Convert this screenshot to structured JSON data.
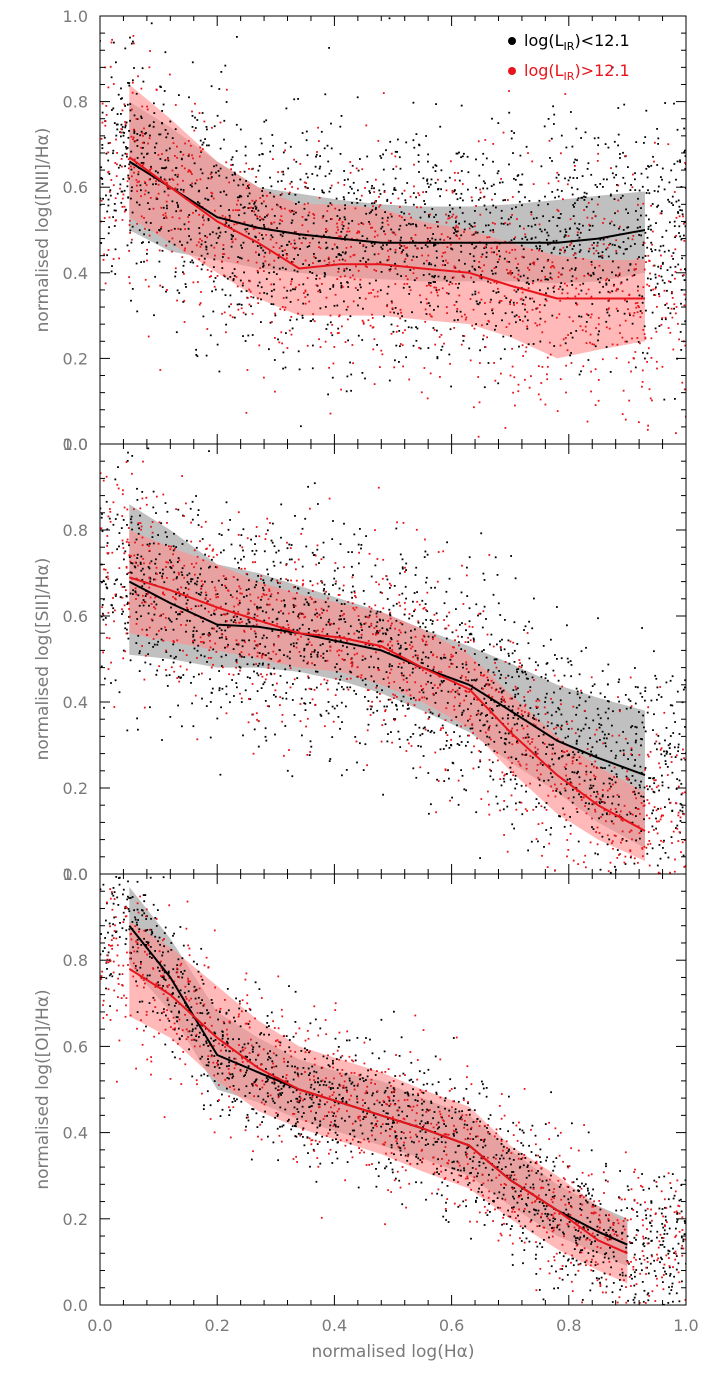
{
  "chart_data": [
    {
      "type": "scatter",
      "panel": "top",
      "xlabel": "",
      "ylabel": "normalised log([NII]/Hα)",
      "xlim": [
        0.0,
        1.0
      ],
      "ylim": [
        0.0,
        1.0
      ],
      "x_ticks": [
        "0.0",
        "0.2",
        "0.4",
        "0.6",
        "0.8",
        "1.0"
      ],
      "y_ticks": [
        "0.0",
        "0.2",
        "0.4",
        "0.6",
        "0.8",
        "1.0"
      ],
      "show_x_tick_labels": false,
      "legend": {
        "position": "top-right",
        "entries": [
          {
            "label": "log(L_IR)<12.1",
            "color": "#000000"
          },
          {
            "label": "log(L_IR)>12.1",
            "color": "#e8141b"
          }
        ]
      },
      "series": [
        {
          "color": "#000000",
          "band_color": "#9a9a9a",
          "median": {
            "x": [
              0.05,
              0.12,
              0.2,
              0.27,
              0.34,
              0.41,
              0.48,
              0.55,
              0.63,
              0.7,
              0.78,
              0.85,
              0.93
            ],
            "y": [
              0.66,
              0.6,
              0.53,
              0.505,
              0.49,
              0.48,
              0.47,
              0.47,
              0.47,
              0.47,
              0.47,
              0.48,
              0.5
            ]
          },
          "band": {
            "x": [
              0.05,
              0.12,
              0.2,
              0.27,
              0.34,
              0.41,
              0.48,
              0.55,
              0.63,
              0.7,
              0.78,
              0.85,
              0.93
            ],
            "lower": [
              0.5,
              0.45,
              0.43,
              0.41,
              0.4,
              0.39,
              0.385,
              0.38,
              0.38,
              0.38,
              0.375,
              0.38,
              0.4
            ],
            "upper": [
              0.8,
              0.74,
              0.66,
              0.6,
              0.585,
              0.57,
              0.56,
              0.555,
              0.555,
              0.56,
              0.57,
              0.58,
              0.59
            ]
          },
          "scatter": {
            "n": 1800,
            "x_range": [
              0.0,
              1.0
            ],
            "sigma": 0.14,
            "seed": 11
          }
        },
        {
          "color": "#e8141b",
          "band_color": "#ff8e8e",
          "median": {
            "x": [
              0.05,
              0.12,
              0.2,
              0.27,
              0.34,
              0.41,
              0.48,
              0.55,
              0.63,
              0.7,
              0.78,
              0.85,
              0.93
            ],
            "y": [
              0.67,
              0.6,
              0.52,
              0.47,
              0.41,
              0.42,
              0.42,
              0.41,
              0.4,
              0.37,
              0.34,
              0.34,
              0.34
            ]
          },
          "band": {
            "x": [
              0.05,
              0.12,
              0.2,
              0.27,
              0.34,
              0.41,
              0.48,
              0.55,
              0.63,
              0.7,
              0.78,
              0.85,
              0.93
            ],
            "lower": [
              0.53,
              0.47,
              0.4,
              0.34,
              0.3,
              0.3,
              0.3,
              0.29,
              0.28,
              0.25,
              0.2,
              0.22,
              0.24
            ],
            "upper": [
              0.84,
              0.76,
              0.66,
              0.6,
              0.56,
              0.56,
              0.55,
              0.52,
              0.5,
              0.47,
              0.44,
              0.43,
              0.43
            ]
          },
          "scatter": {
            "n": 1200,
            "x_range": [
              0.0,
              1.0
            ],
            "sigma": 0.14,
            "seed": 23
          }
        }
      ]
    },
    {
      "type": "scatter",
      "panel": "middle",
      "xlabel": "",
      "ylabel": "normalised log([SII]/Hα)",
      "xlim": [
        0.0,
        1.0
      ],
      "ylim": [
        0.0,
        1.0
      ],
      "x_ticks": [
        "0.0",
        "0.2",
        "0.4",
        "0.6",
        "0.8",
        "1.0"
      ],
      "y_ticks": [
        "0.0",
        "0.2",
        "0.4",
        "0.6",
        "0.8",
        "1.0"
      ],
      "show_x_tick_labels": false,
      "series": [
        {
          "color": "#000000",
          "band_color": "#9a9a9a",
          "median": {
            "x": [
              0.05,
              0.12,
              0.2,
              0.27,
              0.34,
              0.41,
              0.48,
              0.55,
              0.63,
              0.7,
              0.78,
              0.85,
              0.93
            ],
            "y": [
              0.68,
              0.63,
              0.58,
              0.575,
              0.56,
              0.54,
              0.52,
              0.48,
              0.44,
              0.38,
              0.31,
              0.27,
              0.23
            ]
          },
          "band": {
            "x": [
              0.05,
              0.12,
              0.2,
              0.27,
              0.34,
              0.41,
              0.48,
              0.55,
              0.63,
              0.7,
              0.78,
              0.85,
              0.93
            ],
            "lower": [
              0.51,
              0.5,
              0.48,
              0.48,
              0.47,
              0.45,
              0.42,
              0.38,
              0.33,
              0.26,
              0.19,
              0.12,
              0.06
            ],
            "upper": [
              0.86,
              0.8,
              0.72,
              0.7,
              0.67,
              0.64,
              0.61,
              0.57,
              0.53,
              0.49,
              0.44,
              0.41,
              0.38
            ]
          },
          "scatter": {
            "n": 1800,
            "x_range": [
              0.0,
              1.0
            ],
            "sigma": 0.13,
            "seed": 37
          }
        },
        {
          "color": "#e8141b",
          "band_color": "#ff8e8e",
          "median": {
            "x": [
              0.05,
              0.12,
              0.2,
              0.27,
              0.34,
              0.41,
              0.48,
              0.55,
              0.63,
              0.7,
              0.78,
              0.85,
              0.93
            ],
            "y": [
              0.69,
              0.66,
              0.62,
              0.59,
              0.56,
              0.55,
              0.53,
              0.48,
              0.43,
              0.33,
              0.23,
              0.16,
              0.1
            ]
          },
          "band": {
            "x": [
              0.05,
              0.12,
              0.2,
              0.27,
              0.34,
              0.41,
              0.48,
              0.55,
              0.63,
              0.7,
              0.78,
              0.85,
              0.93
            ],
            "lower": [
              0.56,
              0.54,
              0.52,
              0.5,
              0.48,
              0.47,
              0.44,
              0.4,
              0.34,
              0.24,
              0.14,
              0.08,
              0.03
            ],
            "upper": [
              0.8,
              0.76,
              0.72,
              0.68,
              0.65,
              0.63,
              0.61,
              0.57,
              0.51,
              0.42,
              0.32,
              0.25,
              0.19
            ]
          },
          "scatter": {
            "n": 1200,
            "x_range": [
              0.0,
              1.0
            ],
            "sigma": 0.12,
            "seed": 41
          }
        }
      ]
    },
    {
      "type": "scatter",
      "panel": "bottom",
      "xlabel": "normalised log(Hα)",
      "ylabel": "normalised log([OI]/Hα)",
      "xlim": [
        0.0,
        1.0
      ],
      "ylim": [
        0.0,
        1.0
      ],
      "x_ticks": [
        "0.0",
        "0.2",
        "0.4",
        "0.6",
        "0.8",
        "1.0"
      ],
      "y_ticks": [
        "0.0",
        "0.2",
        "0.4",
        "0.6",
        "0.8",
        "1.0"
      ],
      "show_x_tick_labels": true,
      "series": [
        {
          "color": "#000000",
          "band_color": "#9a9a9a",
          "median": {
            "x": [
              0.05,
              0.12,
              0.2,
              0.27,
              0.34,
              0.41,
              0.48,
              0.55,
              0.63,
              0.7,
              0.78,
              0.85,
              0.9
            ],
            "y": [
              0.88,
              0.76,
              0.58,
              0.54,
              0.5,
              0.47,
              0.44,
              0.41,
              0.37,
              0.29,
              0.22,
              0.17,
              0.14
            ]
          },
          "band": {
            "x": [
              0.05,
              0.12,
              0.2,
              0.27,
              0.34,
              0.41,
              0.48,
              0.55,
              0.63,
              0.7,
              0.78,
              0.85,
              0.9
            ],
            "lower": [
              0.79,
              0.68,
              0.5,
              0.47,
              0.43,
              0.4,
              0.37,
              0.34,
              0.3,
              0.23,
              0.16,
              0.12,
              0.09
            ],
            "upper": [
              0.97,
              0.85,
              0.68,
              0.62,
              0.57,
              0.54,
              0.52,
              0.48,
              0.44,
              0.36,
              0.28,
              0.23,
              0.2
            ]
          },
          "scatter": {
            "n": 1500,
            "x_range": [
              0.0,
              1.0
            ],
            "sigma": 0.08,
            "seed": 53
          }
        },
        {
          "color": "#e8141b",
          "band_color": "#ff8e8e",
          "median": {
            "x": [
              0.05,
              0.12,
              0.2,
              0.27,
              0.34,
              0.41,
              0.48,
              0.55,
              0.63,
              0.7,
              0.78,
              0.85,
              0.9
            ],
            "y": [
              0.78,
              0.72,
              0.62,
              0.55,
              0.5,
              0.47,
              0.44,
              0.41,
              0.37,
              0.29,
              0.22,
              0.15,
              0.12
            ]
          },
          "band": {
            "x": [
              0.05,
              0.12,
              0.2,
              0.27,
              0.34,
              0.41,
              0.48,
              0.55,
              0.63,
              0.7,
              0.78,
              0.85,
              0.9
            ],
            "lower": [
              0.67,
              0.62,
              0.52,
              0.45,
              0.41,
              0.38,
              0.35,
              0.31,
              0.27,
              0.2,
              0.13,
              0.08,
              0.05
            ],
            "upper": [
              0.89,
              0.83,
              0.74,
              0.66,
              0.6,
              0.57,
              0.54,
              0.5,
              0.46,
              0.37,
              0.3,
              0.23,
              0.19
            ]
          },
          "scatter": {
            "n": 1000,
            "x_range": [
              0.0,
              1.0
            ],
            "sigma": 0.09,
            "seed": 67
          }
        }
      ]
    }
  ]
}
